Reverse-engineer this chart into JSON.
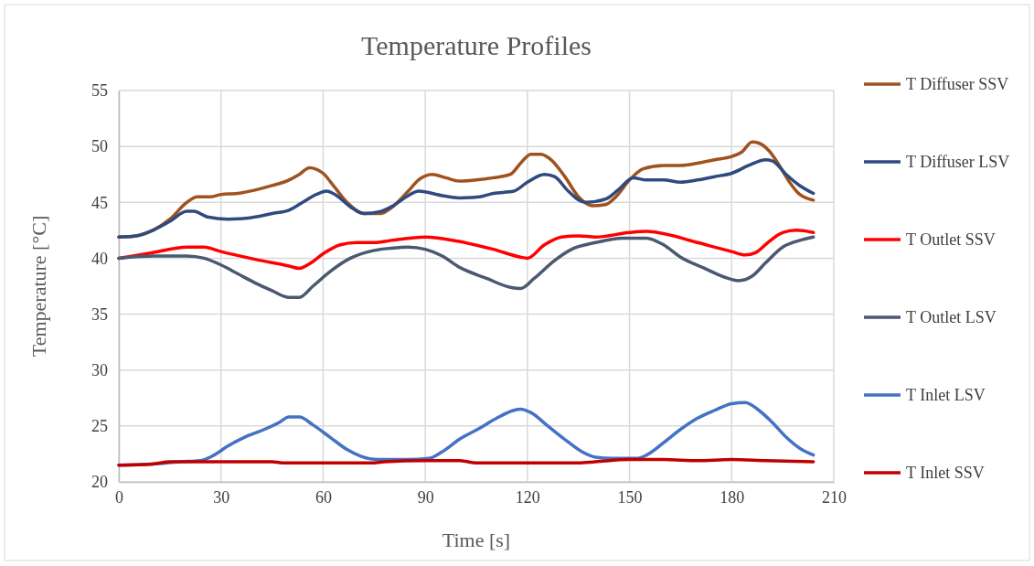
{
  "chart_data": {
    "type": "line",
    "title": "Temperature Profiles",
    "xlabel": "Time [s]",
    "ylabel": "Temperature [°C]",
    "xlim": [
      0,
      210
    ],
    "xticks": [
      0,
      30,
      60,
      90,
      120,
      150,
      180,
      210
    ],
    "ylim": [
      20,
      55
    ],
    "yticks": [
      20,
      25,
      30,
      35,
      40,
      45,
      50,
      55
    ],
    "grid": true,
    "legend": "right",
    "marker": "none",
    "line_style": "solid",
    "series": [
      {
        "name": "T Diffuser SSV",
        "color": "#a0521e",
        "x": [
          0,
          5,
          10,
          15,
          20,
          23,
          27,
          30,
          35,
          40,
          45,
          50,
          53,
          56,
          60,
          63,
          67,
          72,
          77,
          80,
          85,
          88,
          92,
          96,
          100,
          105,
          110,
          115,
          118,
          121,
          124,
          127,
          131,
          135,
          139,
          143,
          146,
          150,
          154,
          160,
          165,
          170,
          175,
          180,
          183,
          186,
          188,
          191,
          194,
          197,
          200,
          204
        ],
        "values": [
          41.9,
          42,
          42.5,
          43.5,
          45,
          45.5,
          45.5,
          45.7,
          45.8,
          46.1,
          46.5,
          47,
          47.5,
          48.1,
          47.6,
          46.5,
          45,
          44,
          44,
          44.5,
          46,
          47,
          47.5,
          47.2,
          46.9,
          47,
          47.2,
          47.5,
          48.5,
          49.3,
          49.3,
          48.8,
          47.3,
          45.5,
          44.7,
          44.8,
          45.5,
          47,
          48,
          48.3,
          48.3,
          48.5,
          48.8,
          49.1,
          49.5,
          50.4,
          50.3,
          49.6,
          48.3,
          46.8,
          45.7,
          45.2
        ]
      },
      {
        "name": "T Diffuser LSV",
        "color": "#2e4a7e",
        "x": [
          0,
          5,
          10,
          15,
          20,
          22,
          26,
          32,
          38,
          45,
          50,
          54,
          58,
          61,
          64,
          68,
          72,
          77,
          80,
          85,
          88,
          95,
          100,
          106,
          110,
          116,
          120,
          125,
          128,
          132,
          137,
          143,
          147,
          151,
          155,
          160,
          165,
          170,
          175,
          180,
          185,
          190,
          192,
          196,
          200,
          204
        ],
        "values": [
          41.9,
          42,
          42.5,
          43.3,
          44.2,
          44.2,
          43.7,
          43.5,
          43.6,
          44,
          44.3,
          45,
          45.7,
          46,
          45.6,
          44.6,
          44,
          44.2,
          44.6,
          45.6,
          46,
          45.6,
          45.4,
          45.5,
          45.8,
          46,
          46.8,
          47.5,
          47.3,
          46,
          45,
          45.3,
          46.2,
          47.2,
          47,
          47,
          46.8,
          47,
          47.3,
          47.6,
          48.3,
          48.8,
          48.7,
          47.5,
          46.5,
          45.8
        ]
      },
      {
        "name": "T Outlet SSV",
        "color": "#ff0000",
        "x": [
          0,
          10,
          20,
          25,
          30,
          40,
          50,
          53,
          56,
          60,
          65,
          70,
          75,
          80,
          90,
          100,
          110,
          118,
          120,
          125,
          130,
          135,
          140,
          150,
          155,
          160,
          170,
          180,
          184,
          187,
          191,
          195,
          199,
          204
        ],
        "values": [
          40,
          40.5,
          41,
          41,
          40.6,
          39.9,
          39.3,
          39.1,
          39.5,
          40.4,
          41.2,
          41.4,
          41.4,
          41.6,
          41.9,
          41.5,
          40.8,
          40.1,
          40,
          41.2,
          41.9,
          42,
          41.9,
          42.3,
          42.4,
          42.2,
          41.4,
          40.6,
          40.3,
          40.5,
          41.5,
          42.3,
          42.5,
          42.3
        ]
      },
      {
        "name": "T Outlet LSV",
        "color": "#4a5870",
        "x": [
          0,
          10,
          20,
          25,
          30,
          35,
          40,
          45,
          50,
          53,
          57,
          62,
          68,
          75,
          80,
          85,
          90,
          95,
          100,
          108,
          115,
          118,
          122,
          128,
          133,
          140,
          148,
          155,
          160,
          165,
          172,
          178,
          182,
          186,
          190,
          195,
          200,
          204
        ],
        "values": [
          40,
          40.2,
          40.2,
          40,
          39.4,
          38.6,
          37.8,
          37.1,
          36.5,
          36.5,
          37.5,
          38.8,
          40,
          40.7,
          40.9,
          41,
          40.8,
          40.2,
          39.2,
          38.2,
          37.4,
          37.3,
          38.2,
          39.8,
          40.8,
          41.4,
          41.8,
          41.8,
          41.2,
          40.1,
          39.1,
          38.3,
          38,
          38.4,
          39.6,
          41,
          41.6,
          41.9
        ]
      },
      {
        "name": "T Inlet LSV",
        "color": "#4472c4",
        "x": [
          0,
          10,
          18,
          24,
          28,
          32,
          37,
          42,
          47,
          50,
          53,
          57,
          62,
          67,
          71,
          76,
          85,
          91,
          95,
          100,
          106,
          111,
          116,
          118,
          121,
          126,
          131,
          136,
          140,
          145,
          152,
          155,
          160,
          165,
          170,
          175,
          180,
          184,
          188,
          192,
          196,
          200,
          204
        ],
        "values": [
          21.5,
          21.6,
          21.8,
          21.9,
          22.4,
          23.2,
          24,
          24.6,
          25.3,
          25.8,
          25.8,
          25.1,
          24,
          22.9,
          22.3,
          22,
          22,
          22.1,
          22.7,
          23.8,
          24.8,
          25.7,
          26.4,
          26.5,
          26.2,
          25,
          23.8,
          22.7,
          22.2,
          22.1,
          22.1,
          22.4,
          23.5,
          24.7,
          25.7,
          26.4,
          27,
          27.1,
          26.4,
          25.3,
          24,
          23,
          22.4
        ]
      },
      {
        "name": "T Inlet SSV",
        "color": "#c00000",
        "x": [
          0,
          10,
          15,
          30,
          45,
          48,
          75,
          78,
          90,
          100,
          105,
          135,
          140,
          150,
          160,
          170,
          180,
          190,
          204
        ],
        "values": [
          21.5,
          21.6,
          21.8,
          21.8,
          21.8,
          21.7,
          21.7,
          21.8,
          21.9,
          21.9,
          21.7,
          21.7,
          21.8,
          22,
          22,
          21.9,
          22,
          21.9,
          21.8
        ]
      }
    ]
  }
}
